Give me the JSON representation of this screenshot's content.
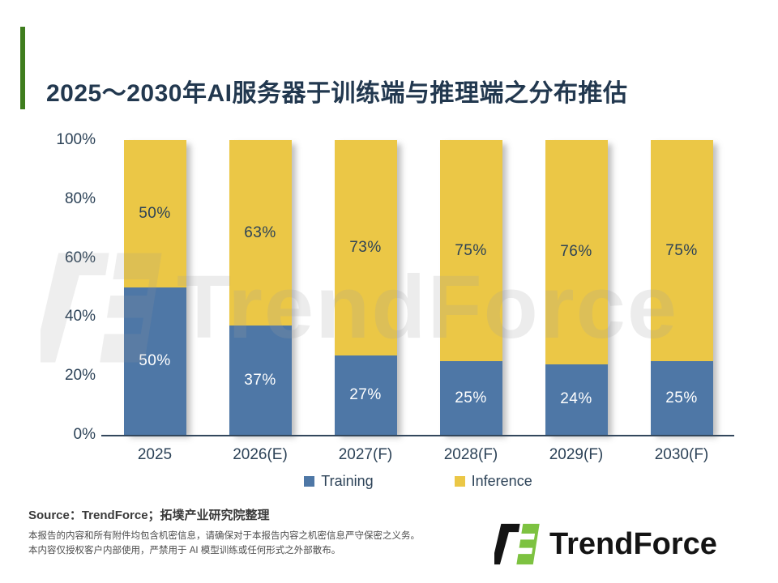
{
  "title": "2025～2030年AI服务器于训练端与推理端之分布推估",
  "accent_color": "#3f7d1e",
  "chart_data": {
    "type": "bar",
    "subtype": "stacked-100-percent",
    "categories": [
      "2025",
      "2026(E)",
      "2027(F)",
      "2028(F)",
      "2029(F)",
      "2030(F)"
    ],
    "series": [
      {
        "name": "Training",
        "color": "#4e77a6",
        "label_color": "#ffffff",
        "values": [
          50,
          37,
          27,
          25,
          24,
          25
        ]
      },
      {
        "name": "Inference",
        "color": "#ebc746",
        "label_color": "#2c4257",
        "values": [
          50,
          63,
          73,
          75,
          76,
          75
        ]
      }
    ],
    "y_ticks": [
      "100%",
      "80%",
      "60%",
      "40%",
      "20%",
      "0%"
    ],
    "ylim": [
      0,
      100
    ],
    "grid": false,
    "legend_position": "bottom"
  },
  "watermark": {
    "text": "TrendForce"
  },
  "footer": {
    "source": "Source：TrendForce；拓墣产业研究院整理",
    "disclaimer_line1": "本报告的内容和所有附件均包含机密信息，请确保对于本报告内容之机密信息严守保密之义务。",
    "disclaimer_line2": "本内容仅授权客户内部使用，严禁用于 AI 模型训练或任何形式之外部散布。",
    "logo_text": "TrendForce"
  }
}
